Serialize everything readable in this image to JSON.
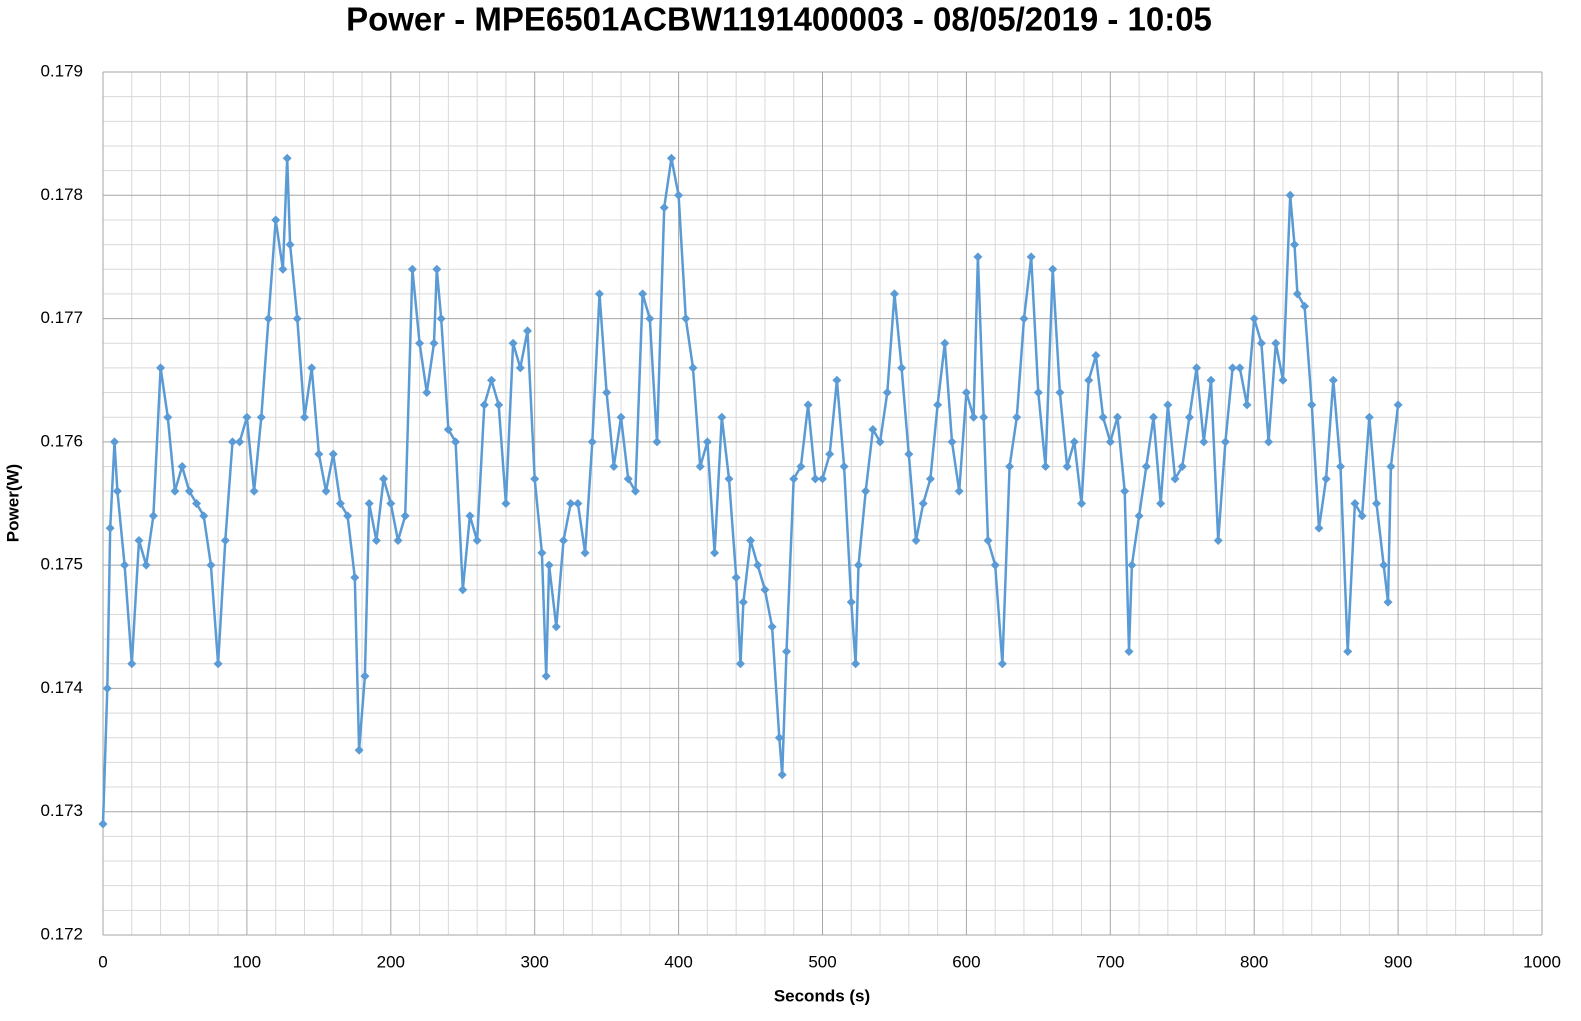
{
  "chart_data": {
    "type": "line",
    "title": "Power - MPE6501ACBW1191400003 - 08/05/2019 - 10:05",
    "x_label": "Seconds (s)",
    "y_label": "Power(W)",
    "color": "#5b9bd5",
    "grid": true,
    "xlim": [
      0,
      1000
    ],
    "xticks": [
      0,
      100,
      200,
      300,
      400,
      500,
      600,
      700,
      800,
      900,
      1000
    ],
    "ylim": [
      0.172,
      0.179
    ],
    "yticks": [
      0.172,
      0.173,
      0.174,
      0.175,
      0.176,
      0.177,
      0.178,
      0.179
    ],
    "x": [
      0,
      3,
      5,
      8,
      10,
      15,
      20,
      25,
      30,
      35,
      40,
      45,
      50,
      55,
      60,
      65,
      70,
      75,
      80,
      85,
      90,
      95,
      100,
      105,
      110,
      115,
      120,
      125,
      128,
      130,
      135,
      140,
      145,
      150,
      155,
      160,
      165,
      170,
      175,
      178,
      182,
      185,
      190,
      195,
      200,
      205,
      210,
      215,
      220,
      225,
      230,
      232,
      235,
      240,
      245,
      250,
      255,
      260,
      265,
      270,
      275,
      280,
      285,
      290,
      295,
      300,
      305,
      308,
      310,
      315,
      320,
      325,
      330,
      335,
      340,
      345,
      350,
      355,
      360,
      365,
      370,
      375,
      380,
      385,
      390,
      395,
      400,
      405,
      410,
      415,
      420,
      425,
      430,
      435,
      440,
      443,
      445,
      450,
      455,
      460,
      465,
      470,
      472,
      475,
      480,
      485,
      490,
      495,
      500,
      505,
      510,
      515,
      520,
      523,
      525,
      530,
      535,
      540,
      545,
      550,
      555,
      560,
      565,
      570,
      575,
      580,
      585,
      590,
      595,
      600,
      605,
      608,
      612,
      615,
      620,
      625,
      630,
      635,
      640,
      645,
      650,
      655,
      660,
      665,
      670,
      675,
      680,
      685,
      690,
      695,
      700,
      705,
      710,
      713,
      715,
      720,
      725,
      730,
      735,
      740,
      745,
      750,
      755,
      760,
      765,
      770,
      775,
      780,
      785,
      790,
      795,
      800,
      805,
      810,
      815,
      820,
      825,
      828,
      830,
      835,
      840,
      845,
      850,
      855,
      860,
      865,
      870,
      875,
      880,
      885,
      890,
      893,
      895,
      900
    ],
    "values": [
      0.1729,
      0.174,
      0.1753,
      0.176,
      0.1756,
      0.175,
      0.1742,
      0.1752,
      0.175,
      0.1754,
      0.1766,
      0.1762,
      0.1756,
      0.1758,
      0.1756,
      0.1755,
      0.1754,
      0.175,
      0.1742,
      0.1752,
      0.176,
      0.176,
      0.1762,
      0.1756,
      0.1762,
      0.177,
      0.1778,
      0.1774,
      0.1783,
      0.1776,
      0.177,
      0.1762,
      0.1766,
      0.1759,
      0.1756,
      0.1759,
      0.1755,
      0.1754,
      0.1749,
      0.1735,
      0.1741,
      0.1755,
      0.1752,
      0.1757,
      0.1755,
      0.1752,
      0.1754,
      0.1774,
      0.1768,
      0.1764,
      0.1768,
      0.1774,
      0.177,
      0.1761,
      0.176,
      0.1748,
      0.1754,
      0.1752,
      0.1763,
      0.1765,
      0.1763,
      0.1755,
      0.1768,
      0.1766,
      0.1769,
      0.1757,
      0.1751,
      0.1741,
      0.175,
      0.1745,
      0.1752,
      0.1755,
      0.1755,
      0.1751,
      0.176,
      0.1772,
      0.1764,
      0.1758,
      0.1762,
      0.1757,
      0.1756,
      0.1772,
      0.177,
      0.176,
      0.1779,
      0.1783,
      0.178,
      0.177,
      0.1766,
      0.1758,
      0.176,
      0.1751,
      0.1762,
      0.1757,
      0.1749,
      0.1742,
      0.1747,
      0.1752,
      0.175,
      0.1748,
      0.1745,
      0.1736,
      0.1733,
      0.1743,
      0.1757,
      0.1758,
      0.1763,
      0.1757,
      0.1757,
      0.1759,
      0.1765,
      0.1758,
      0.1747,
      0.1742,
      0.175,
      0.1756,
      0.1761,
      0.176,
      0.1764,
      0.1772,
      0.1766,
      0.1759,
      0.1752,
      0.1755,
      0.1757,
      0.1763,
      0.1768,
      0.176,
      0.1756,
      0.1764,
      0.1762,
      0.1775,
      0.1762,
      0.1752,
      0.175,
      0.1742,
      0.1758,
      0.1762,
      0.177,
      0.1775,
      0.1764,
      0.1758,
      0.1774,
      0.1764,
      0.1758,
      0.176,
      0.1755,
      0.1765,
      0.1767,
      0.1762,
      0.176,
      0.1762,
      0.1756,
      0.1743,
      0.175,
      0.1754,
      0.1758,
      0.1762,
      0.1755,
      0.1763,
      0.1757,
      0.1758,
      0.1762,
      0.1766,
      0.176,
      0.1765,
      0.1752,
      0.176,
      0.1766,
      0.1766,
      0.1763,
      0.177,
      0.1768,
      0.176,
      0.1768,
      0.1765,
      0.178,
      0.1776,
      0.1772,
      0.1771,
      0.1763,
      0.1753,
      0.1757,
      0.1765,
      0.1758,
      0.1743,
      0.1755,
      0.1754,
      0.1762,
      0.1755,
      0.175,
      0.1747,
      0.1758,
      0.1763
    ]
  }
}
